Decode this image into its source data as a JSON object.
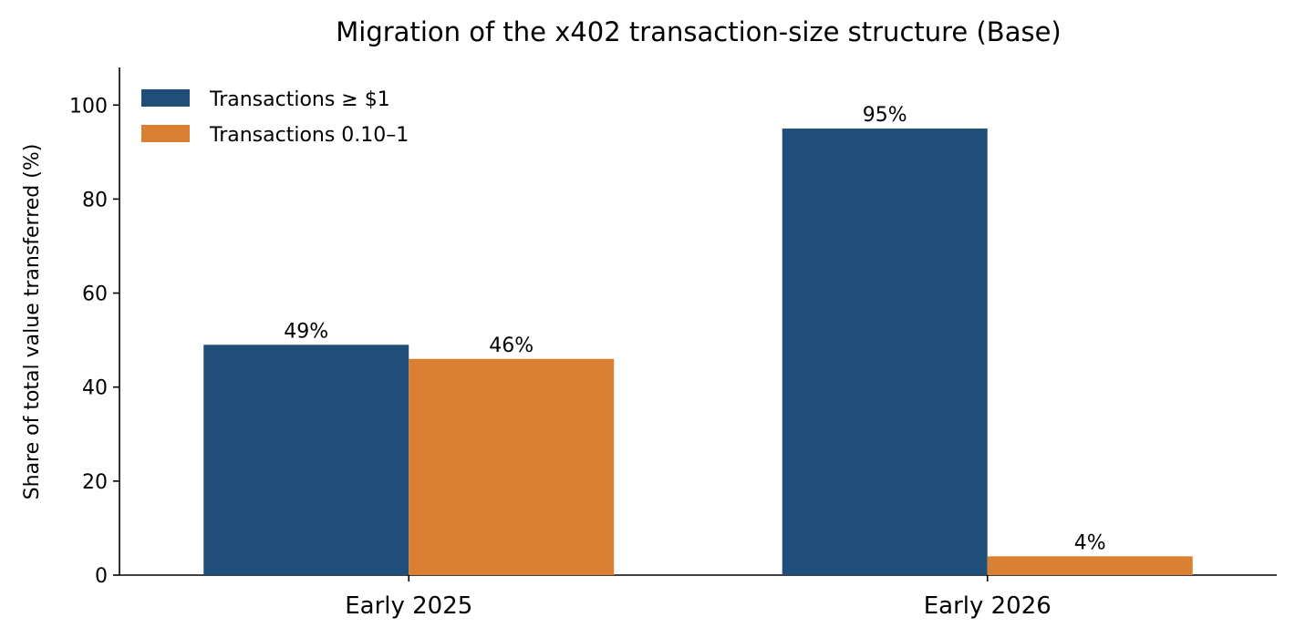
{
  "chart_data": {
    "type": "bar",
    "title": "Migration of the x402 transaction-size structure (Base)",
    "xlabel": "",
    "ylabel": "Share of total value transferred (%)",
    "categories": [
      "Early 2025",
      "Early 2026"
    ],
    "series": [
      {
        "name": "Transactions ≥ $1",
        "values": [
          49,
          95
        ],
        "labels": [
          "49%",
          "95%"
        ],
        "color": "#1f4e79"
      },
      {
        "name": "Transactions 0.10–1",
        "values": [
          46,
          4
        ],
        "labels": [
          "46%",
          "4%"
        ],
        "color": "#d98033"
      }
    ],
    "ylim": [
      0,
      108
    ],
    "yticks": [
      0,
      20,
      40,
      60,
      80,
      100
    ],
    "grid": false,
    "legend_position": "top-left"
  }
}
